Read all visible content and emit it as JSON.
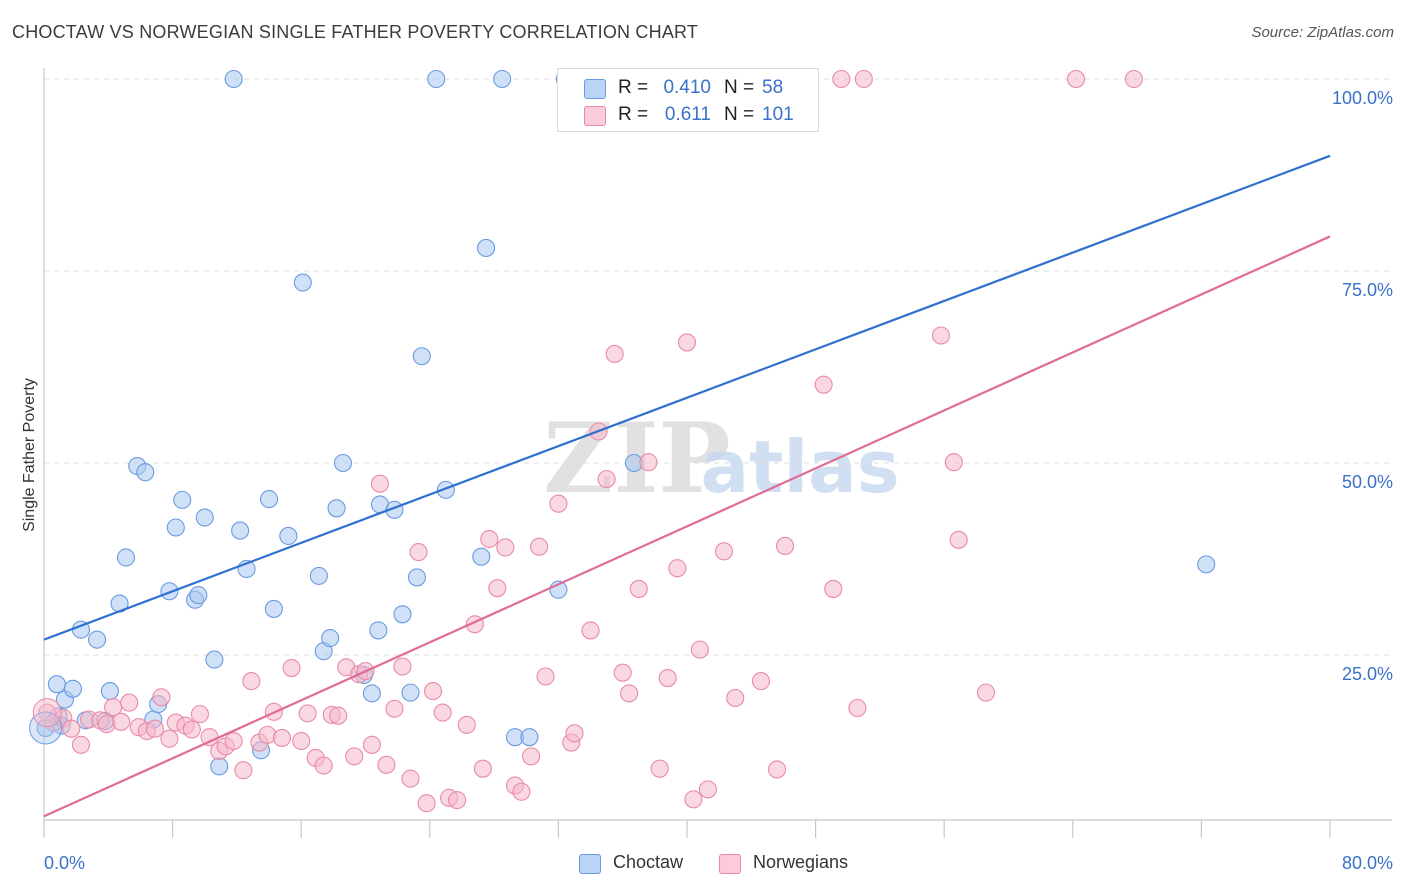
{
  "title": "CHOCTAW VS NORWEGIAN SINGLE FATHER POVERTY CORRELATION CHART",
  "source": "Source: ZipAtlas.com",
  "watermark": {
    "zip": "ZIP",
    "atlas": "atlas"
  },
  "legend": {
    "r_label": "R =",
    "n_label": "N =",
    "rows": [
      {
        "name": "Choctaw",
        "r": "0.410",
        "n": "58",
        "color": "#a9c8f0"
      },
      {
        "name": "Norwegians",
        "r": "0.611",
        "n": "101",
        "color": "#f6b8ca"
      }
    ]
  },
  "colors": {
    "choctaw_fill": "#a9c8f0",
    "choctaw_stroke": "#6a9be0",
    "choctaw_line": "#2f6fd0",
    "norwegian_fill": "#f6b8ca",
    "norwegian_stroke": "#e98aa8",
    "norwegian_line": "#e06c95",
    "axis_text": "#3a72c8",
    "grid": "#dedede"
  },
  "chart_data": {
    "type": "scatter",
    "title": "CHOCTAW VS NORWEGIAN SINGLE FATHER POVERTY CORRELATION CHART",
    "xlabel": "",
    "ylabel": "Single Father Poverty",
    "xlim": [
      0,
      80
    ],
    "ylim": [
      0,
      103
    ],
    "x_tick_labels": [
      "0.0%",
      "80.0%"
    ],
    "y_ticks": [
      25,
      50,
      75,
      100
    ],
    "y_tick_labels": [
      "25.0%",
      "50.0%",
      "75.0%",
      "100.0%"
    ],
    "grid": "horizontal dashed",
    "legend_position": "top-center",
    "series": [
      {
        "name": "Choctaw",
        "r": 0.41,
        "n": 58,
        "trend": {
          "x": [
            0,
            80
          ],
          "y": [
            27.0,
            90.0
          ]
        },
        "points": [
          [
            0.1,
            15.5
          ],
          [
            0.8,
            21.2
          ],
          [
            1.3,
            19.2
          ],
          [
            1.8,
            20.6
          ],
          [
            2.3,
            28.3
          ],
          [
            2.6,
            16.5
          ],
          [
            3.3,
            27.0
          ],
          [
            3.8,
            16.4
          ],
          [
            4.1,
            20.3
          ],
          [
            4.7,
            31.7
          ],
          [
            5.1,
            37.7
          ],
          [
            5.8,
            49.6
          ],
          [
            6.3,
            48.8
          ],
          [
            6.8,
            16.6
          ],
          [
            7.1,
            18.6
          ],
          [
            7.8,
            33.3
          ],
          [
            8.2,
            41.6
          ],
          [
            8.6,
            45.2
          ],
          [
            9.4,
            32.2
          ],
          [
            9.6,
            32.8
          ],
          [
            10.0,
            42.9
          ],
          [
            10.6,
            24.4
          ],
          [
            10.9,
            10.5
          ],
          [
            11.8,
            100.0
          ],
          [
            12.2,
            41.2
          ],
          [
            12.6,
            36.2
          ],
          [
            13.5,
            12.6
          ],
          [
            14.0,
            45.3
          ],
          [
            14.3,
            31.0
          ],
          [
            15.2,
            40.5
          ],
          [
            16.1,
            73.5
          ],
          [
            17.1,
            35.3
          ],
          [
            17.4,
            25.5
          ],
          [
            17.8,
            27.2
          ],
          [
            18.2,
            44.1
          ],
          [
            18.6,
            50.0
          ],
          [
            19.9,
            22.4
          ],
          [
            20.4,
            20.0
          ],
          [
            20.8,
            28.2
          ],
          [
            20.9,
            44.6
          ],
          [
            21.8,
            43.9
          ],
          [
            22.3,
            30.3
          ],
          [
            22.8,
            20.1
          ],
          [
            23.2,
            35.1
          ],
          [
            23.5,
            63.9
          ],
          [
            24.4,
            100.0
          ],
          [
            25.0,
            46.5
          ],
          [
            27.2,
            37.8
          ],
          [
            27.5,
            78.0
          ],
          [
            28.5,
            100.0
          ],
          [
            29.3,
            14.3
          ],
          [
            30.2,
            14.3
          ],
          [
            32.0,
            33.5
          ],
          [
            32.4,
            100.0
          ],
          [
            36.7,
            50.0
          ],
          [
            72.3,
            36.8
          ],
          [
            0.9,
            17.0
          ],
          [
            1.1,
            15.8
          ]
        ]
      },
      {
        "name": "Norwegians",
        "r": 0.611,
        "n": 101,
        "trend": {
          "x": [
            0,
            80
          ],
          "y": [
            4.0,
            79.5
          ]
        },
        "points": [
          [
            0.2,
            17.5
          ],
          [
            0.6,
            16.2
          ],
          [
            1.2,
            16.8
          ],
          [
            1.7,
            15.4
          ],
          [
            2.3,
            13.3
          ],
          [
            2.8,
            16.6
          ],
          [
            3.5,
            16.5
          ],
          [
            3.9,
            16.0
          ],
          [
            4.3,
            18.2
          ],
          [
            4.8,
            16.3
          ],
          [
            5.3,
            18.8
          ],
          [
            5.9,
            15.6
          ],
          [
            6.4,
            15.1
          ],
          [
            6.9,
            15.4
          ],
          [
            7.3,
            19.5
          ],
          [
            7.8,
            14.1
          ],
          [
            8.2,
            16.2
          ],
          [
            8.8,
            15.8
          ],
          [
            9.2,
            15.3
          ],
          [
            9.7,
            17.3
          ],
          [
            10.3,
            14.3
          ],
          [
            10.9,
            12.5
          ],
          [
            11.3,
            13.1
          ],
          [
            11.8,
            13.8
          ],
          [
            12.4,
            10.0
          ],
          [
            12.9,
            21.6
          ],
          [
            13.4,
            13.6
          ],
          [
            13.9,
            14.6
          ],
          [
            14.3,
            17.6
          ],
          [
            14.8,
            14.2
          ],
          [
            15.4,
            23.3
          ],
          [
            16.0,
            13.8
          ],
          [
            16.4,
            17.4
          ],
          [
            16.9,
            11.6
          ],
          [
            17.4,
            10.6
          ],
          [
            17.9,
            17.2
          ],
          [
            18.3,
            17.1
          ],
          [
            18.8,
            23.4
          ],
          [
            19.3,
            11.8
          ],
          [
            19.6,
            22.5
          ],
          [
            20.0,
            22.9
          ],
          [
            20.4,
            13.3
          ],
          [
            20.9,
            47.3
          ],
          [
            21.3,
            10.7
          ],
          [
            21.8,
            18.0
          ],
          [
            22.3,
            23.5
          ],
          [
            22.8,
            8.9
          ],
          [
            23.3,
            38.4
          ],
          [
            23.8,
            5.7
          ],
          [
            24.2,
            20.3
          ],
          [
            24.8,
            17.5
          ],
          [
            25.2,
            6.4
          ],
          [
            25.7,
            6.1
          ],
          [
            26.3,
            15.9
          ],
          [
            26.8,
            29.0
          ],
          [
            27.3,
            10.2
          ],
          [
            27.7,
            40.1
          ],
          [
            28.2,
            33.7
          ],
          [
            28.7,
            39.0
          ],
          [
            29.3,
            8.0
          ],
          [
            29.7,
            7.2
          ],
          [
            30.3,
            11.8
          ],
          [
            30.8,
            39.1
          ],
          [
            31.2,
            22.2
          ],
          [
            32.0,
            44.7
          ],
          [
            32.8,
            13.6
          ],
          [
            33.0,
            14.8
          ],
          [
            34.0,
            28.2
          ],
          [
            34.5,
            54.1
          ],
          [
            35.0,
            47.9
          ],
          [
            35.5,
            64.2
          ],
          [
            36.0,
            22.7
          ],
          [
            36.4,
            20.0
          ],
          [
            37.0,
            33.6
          ],
          [
            37.6,
            50.1
          ],
          [
            38.3,
            10.2
          ],
          [
            38.8,
            22.0
          ],
          [
            39.4,
            36.3
          ],
          [
            40.0,
            65.7
          ],
          [
            40.4,
            6.2
          ],
          [
            40.8,
            25.7
          ],
          [
            41.3,
            7.5
          ],
          [
            42.3,
            38.5
          ],
          [
            43.0,
            19.4
          ],
          [
            44.6,
            21.6
          ],
          [
            45.6,
            10.1
          ],
          [
            46.1,
            39.2
          ],
          [
            48.5,
            60.2
          ],
          [
            49.1,
            33.6
          ],
          [
            49.6,
            100.0
          ],
          [
            50.6,
            18.1
          ],
          [
            51.0,
            100.0
          ],
          [
            55.8,
            66.6
          ],
          [
            56.6,
            50.1
          ],
          [
            56.9,
            40.0
          ],
          [
            58.6,
            20.1
          ],
          [
            64.2,
            100.0
          ],
          [
            67.8,
            100.0
          ],
          [
            45.3,
            100.0
          ],
          [
            37.3,
            100.0
          ],
          [
            39.7,
            100.0
          ]
        ]
      }
    ]
  }
}
